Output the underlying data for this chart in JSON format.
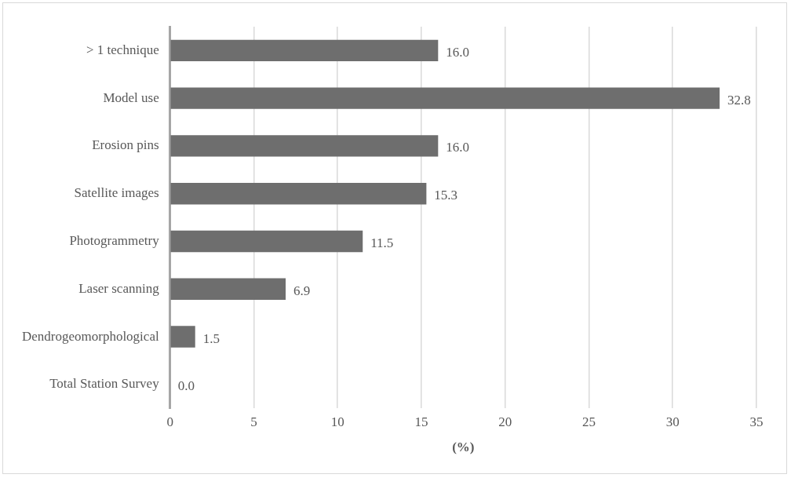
{
  "chart_data": {
    "type": "bar",
    "orientation": "horizontal",
    "xlabel": "(%)",
    "categories": [
      "> 1 technique",
      "Model use",
      "Erosion pins",
      "Satellite images",
      "Photogrammetry",
      "Laser scanning",
      "Dendrogeomorphological",
      "Total Station Survey"
    ],
    "values": [
      16.0,
      32.8,
      16.0,
      15.3,
      11.5,
      6.9,
      1.5,
      0.0
    ],
    "value_labels": [
      "16.0",
      "32.8",
      "16.0",
      "15.3",
      "11.5",
      "6.9",
      "1.5",
      "0.0"
    ],
    "color": "#6e6e6e",
    "xlim": [
      0,
      35
    ],
    "xticks": [
      0,
      5,
      10,
      15,
      20,
      25,
      30,
      35
    ],
    "grid": "x",
    "legend": false
  }
}
